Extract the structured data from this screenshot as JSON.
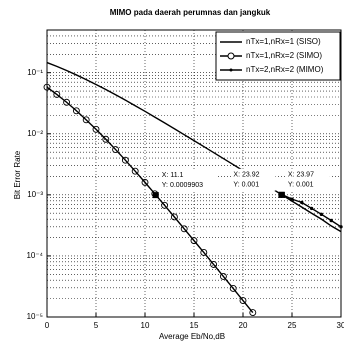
{
  "chart_data": {
    "type": "line",
    "title": "MIMO pada daerah perumnas dan jangkuk",
    "x_label": "Average Eb/No,dB",
    "y_label": "Bit Error Rate",
    "x": [
      0,
      1,
      2,
      3,
      4,
      5,
      6,
      7,
      8,
      9,
      10,
      11,
      12,
      13,
      14,
      15,
      16,
      17,
      18,
      19,
      20,
      21,
      22,
      23,
      24,
      25,
      26,
      27,
      28,
      29,
      30
    ],
    "series": [
      {
        "name": "nTx=1,nRx=1 (SISO)",
        "color": "#000000",
        "marker": "none",
        "values": [
          0.1464,
          0.1267,
          0.1085,
          0.0919,
          0.0771,
          0.0642,
          0.053,
          0.0435,
          0.0355,
          0.0288,
          0.0233,
          0.01875,
          0.01507,
          0.01208,
          0.00966,
          0.00773,
          0.00617,
          0.00492,
          0.00393,
          0.00313,
          0.00249,
          0.00198,
          0.00158,
          0.00125,
          0.000995,
          0.00079,
          0.00063,
          0.0005,
          0.0004,
          0.00031,
          0.00025
        ]
      },
      {
        "name": "nTx=1,nRx=2 (SIMO)",
        "color": "#000000",
        "marker": "circle",
        "values": [
          0.058,
          0.0441,
          0.0328,
          0.0238,
          0.0169,
          0.01184,
          0.00813,
          0.00551,
          0.00369,
          0.00244,
          0.0016,
          0.00104,
          0.000675,
          0.000434,
          0.000278,
          0.000178,
          0.000114,
          7.24e-05,
          4.62e-05,
          2.93e-05,
          1.86e-05,
          1.18e-05,
          null,
          null,
          null,
          null,
          null,
          null,
          null,
          null,
          null
        ]
      },
      {
        "name": "nTx=2,nRx=2 (MIMO)",
        "color": "#000000",
        "marker": "point",
        "values": [
          null,
          null,
          null,
          null,
          null,
          null,
          null,
          null,
          null,
          null,
          null,
          null,
          null,
          null,
          null,
          null,
          null,
          null,
          null,
          null,
          null,
          null,
          null,
          null,
          0.00101,
          0.00085,
          0.00075,
          0.0006,
          0.00048,
          0.00038,
          0.0003
        ]
      }
    ],
    "datatips": [
      {
        "x": 11.1,
        "y": 0.0009903,
        "text_x": "X: 11.1",
        "text_y": "Y: 0.0009903"
      },
      {
        "x": 23.92,
        "y": 0.001,
        "text_x": "X: 23.92",
        "text_y": "Y: 0.001"
      },
      {
        "x": 23.97,
        "y": 0.001,
        "text_x": "X: 23.97",
        "text_y": "Y: 0.001"
      }
    ],
    "xlim": [
      0,
      30
    ],
    "xticks": [
      0,
      5,
      10,
      15,
      20,
      25,
      30
    ],
    "ylim": [
      1e-05,
      0.5
    ],
    "y_scale": "log",
    "yticks": [
      {
        "value": 0.1,
        "label": "10⁻¹"
      },
      {
        "value": 0.01,
        "label": "10⁻²"
      },
      {
        "value": 0.001,
        "label": "10⁻³"
      },
      {
        "value": 0.0001,
        "label": "10⁻⁴"
      },
      {
        "value": 1e-05,
        "label": "10⁻⁵"
      }
    ],
    "grid": true,
    "minor_grid": true,
    "legend": "upper right"
  }
}
